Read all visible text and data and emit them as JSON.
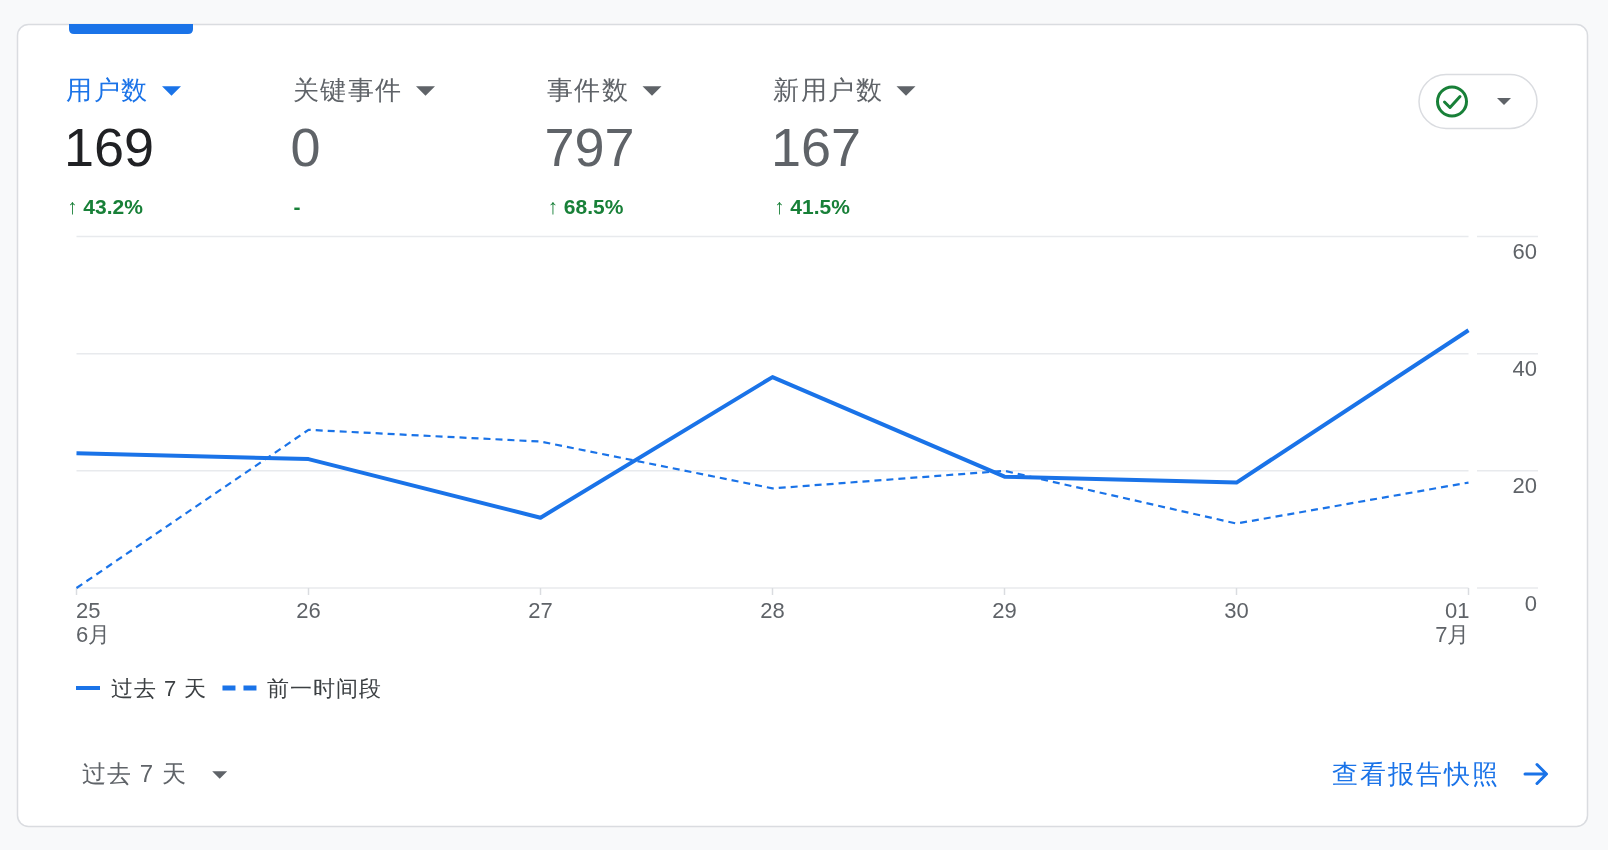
{
  "chart_data": [
    {
      "type": "other",
      "categories": [
        "用户数",
        "关键事件",
        "事件数",
        "新用户数"
      ],
      "values": [
        169,
        0,
        797,
        167
      ],
      "data_labels": true,
      "colors": [
        "#1a73e8",
        "#5f6368",
        "#5f6368",
        "#5f6368"
      ],
      "annotations": [
        "↑ 43.2%",
        "-",
        "↑ 68.5%",
        "↑ 41.5%"
      ]
    },
    {
      "type": "line",
      "categories": [
        "25\n6月",
        "26",
        "27",
        "28",
        "29",
        "30",
        "01\n7月"
      ],
      "series": [
        {
          "name": "过去 7 天",
          "color": "#1a73e8",
          "line_style": "solid",
          "values": [
            23,
            22,
            12,
            36,
            19,
            18,
            44
          ]
        },
        {
          "name": "前一时间段",
          "color": "#1a73e8",
          "line_style": "dashed",
          "values": [
            0,
            27,
            25,
            17,
            20,
            11,
            18
          ]
        }
      ],
      "ylim": [
        0,
        60
      ],
      "yticks": [
        0,
        20,
        40,
        60
      ],
      "grid": "y",
      "legend": "bottom left",
      "annotations": [
        "过去 7 天",
        "查看报告快照"
      ]
    }
  ]
}
